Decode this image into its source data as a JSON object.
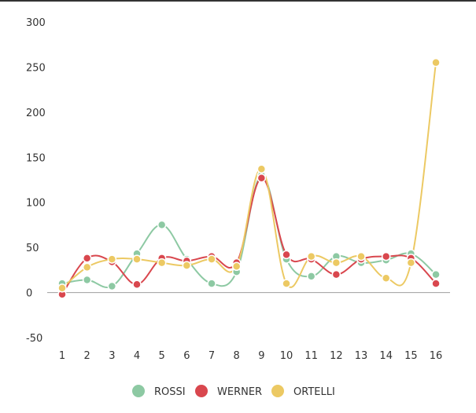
{
  "chart_data": {
    "type": "line",
    "x": [
      1,
      2,
      3,
      4,
      5,
      6,
      7,
      8,
      9,
      10,
      11,
      12,
      13,
      14,
      15,
      16
    ],
    "ylim": [
      -50,
      300
    ],
    "yticks": [
      -50,
      0,
      50,
      100,
      150,
      200,
      250,
      300
    ],
    "grid": false,
    "legend_position": "bottom",
    "smooth": true,
    "series": [
      {
        "name": "ROSSI",
        "color": "#8dc9a3",
        "values": [
          10,
          14,
          7,
          43,
          75,
          37,
          10,
          23,
          130,
          37,
          18,
          40,
          33,
          36,
          43,
          20
        ]
      },
      {
        "name": "WERNER",
        "color": "#d9474e",
        "values": [
          -2,
          38,
          34,
          9,
          38,
          35,
          40,
          33,
          127,
          42,
          37,
          20,
          37,
          40,
          38,
          10
        ]
      },
      {
        "name": "ORTELLI",
        "color": "#ecc963",
        "values": [
          5,
          28,
          37,
          37,
          33,
          30,
          37,
          29,
          137,
          10,
          40,
          33,
          40,
          16,
          33,
          255
        ]
      }
    ]
  }
}
